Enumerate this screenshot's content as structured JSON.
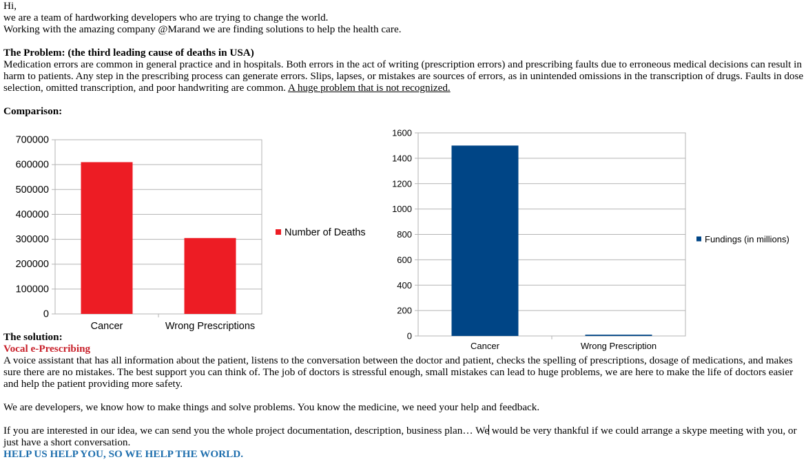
{
  "doc": {
    "greeting": "Hi,",
    "intro1": "we are a team of hardworking developers who are trying to change the world.",
    "intro2": "Working with the amazing company @Marand we are finding solutions to help the health care.",
    "problem_heading": "The Problem: (the third leading cause of deaths in USA)",
    "problem_text": "Medication errors are common in general practice and in hospitals. Both errors in the act of writing (prescription errors) and prescribing faults due to erroneous medical decisions can result in harm to patients. Any step in the prescribing process can generate errors. Slips, lapses, or mistakes are sources of errors, as in unintended omissions in the transcription of drugs. Faults in dose selection, omitted transcription, and poor handwriting are common.",
    "problem_emphasis": "A huge problem that is not recognized.",
    "comparison_heading": "Comparison:",
    "solution_heading": "The solution:",
    "product_name": "Vocal e-Prescribing",
    "solution_text": "A voice assistant that has all information about the patient, listens to the conversation between the doctor and patient, checks the spelling of prescriptions, dosage of medications, and makes sure there are no mistakes. The best support you can think of. The job of doctors is stressful enough, small mistakes can lead to huge problems, we are here to make the life of doctors easier and help the patient providing more safety.",
    "developers_text": "We are developers, we know how to make things and solve problems. You know the medicine, we need your help and feedback.",
    "offer_text_a": "If you are interested in our idea, we can send you the whole project documentation, description, business plan… We",
    "offer_text_b": " would be very thankful if we could arrange a skype meeting with you, or just have a short conversation.",
    "call_to_action": "HELP US HELP YOU, SO WE HELP THE WORLD."
  },
  "colors": {
    "deaths_series": "#ed1c24",
    "fundings_series": "#004586",
    "solution_title": "#c8202a",
    "call_to_action": "#1f6fae"
  },
  "chart_data": [
    {
      "type": "bar",
      "categories": [
        "Cancer",
        "Wrong Prescriptions"
      ],
      "series": [
        {
          "name": "Number of Deaths",
          "values": [
            610000,
            305000
          ]
        }
      ],
      "ylim": [
        0,
        700000
      ],
      "yticks": [
        0,
        100000,
        200000,
        300000,
        400000,
        500000,
        600000,
        700000
      ],
      "grid": true,
      "legend": "right"
    },
    {
      "type": "bar",
      "categories": [
        "Cancer",
        "Wrong Prescription"
      ],
      "series": [
        {
          "name": "Fundings (in millions)",
          "values": [
            1500,
            10
          ]
        }
      ],
      "ylim": [
        0,
        1600
      ],
      "yticks": [
        0,
        200,
        400,
        600,
        800,
        1000,
        1200,
        1400,
        1600
      ],
      "grid": true,
      "legend": "right"
    }
  ]
}
